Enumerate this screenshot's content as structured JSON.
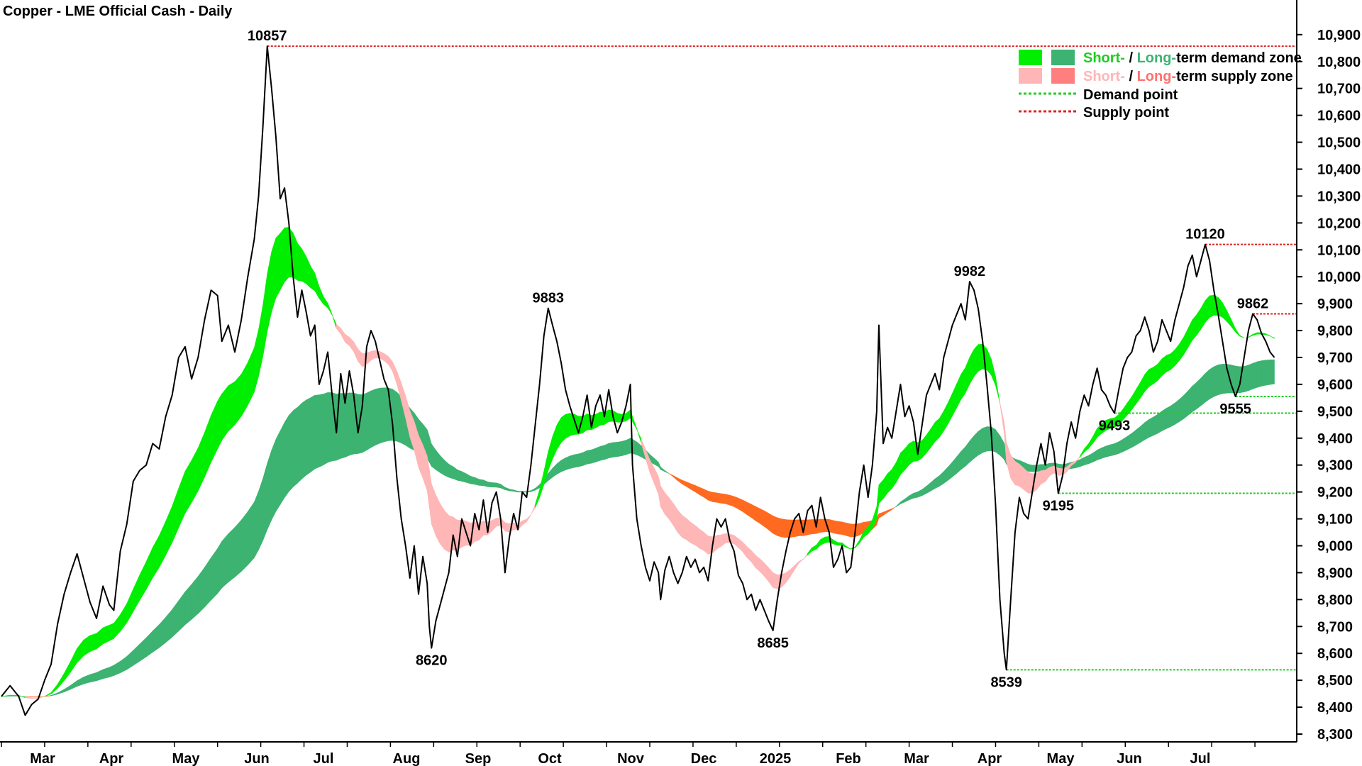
{
  "chart_data": {
    "type": "line",
    "title": "Copper - LME Official Cash - Daily",
    "x_labels": [
      "Mar",
      "Apr",
      "May",
      "Jun",
      "Jul",
      "Aug",
      "Sep",
      "Oct",
      "Nov",
      "Dec",
      "2025",
      "Feb",
      "Mar",
      "Apr",
      "May",
      "Jun",
      "Jul"
    ],
    "y_ticks": [
      "8,300",
      "8,400",
      "8,500",
      "8,600",
      "8,700",
      "8,800",
      "8,900",
      "9,000",
      "9,100",
      "9,200",
      "9,300",
      "9,400",
      "9,500",
      "9,600",
      "9,700",
      "9,800",
      "9,900",
      "10,000",
      "10,100",
      "10,200",
      "10,300",
      "10,400",
      "10,500",
      "10,600",
      "10,700",
      "10,800",
      "10,900"
    ],
    "ylim": [
      8260,
      10940
    ],
    "y_axis_position": "right",
    "grid": false,
    "legend_position": "top-right",
    "legend": {
      "row1": {
        "short": "Short-",
        "sep": " / ",
        "long": "Long-",
        "rest": "term demand zone"
      },
      "row2": {
        "short": "Short-",
        "sep": " / ",
        "long": "Long-",
        "rest": "term supply zone"
      },
      "row3": "Demand point",
      "row4": "Supply point"
    },
    "price_series": {
      "name": "",
      "points": [
        [
          0,
          8440
        ],
        [
          0.2,
          8480
        ],
        [
          0.4,
          8440
        ],
        [
          0.55,
          8370
        ],
        [
          0.7,
          8410
        ],
        [
          0.85,
          8430
        ],
        [
          1.0,
          8500
        ],
        [
          1.15,
          8560
        ],
        [
          1.3,
          8710
        ],
        [
          1.45,
          8820
        ],
        [
          1.6,
          8900
        ],
        [
          1.75,
          8970
        ],
        [
          1.9,
          8880
        ],
        [
          2.05,
          8790
        ],
        [
          2.2,
          8730
        ],
        [
          2.35,
          8850
        ],
        [
          2.5,
          8780
        ],
        [
          2.6,
          8760
        ],
        [
          2.75,
          8980
        ],
        [
          2.9,
          9080
        ],
        [
          3.05,
          9240
        ],
        [
          3.2,
          9280
        ],
        [
          3.35,
          9300
        ],
        [
          3.5,
          9380
        ],
        [
          3.65,
          9360
        ],
        [
          3.8,
          9480
        ],
        [
          3.95,
          9560
        ],
        [
          4.1,
          9700
        ],
        [
          4.25,
          9740
        ],
        [
          4.4,
          9620
        ],
        [
          4.55,
          9700
        ],
        [
          4.7,
          9840
        ],
        [
          4.85,
          9950
        ],
        [
          5.0,
          9930
        ],
        [
          5.1,
          9760
        ],
        [
          5.25,
          9820
        ],
        [
          5.4,
          9720
        ],
        [
          5.55,
          9840
        ],
        [
          5.7,
          10000
        ],
        [
          5.85,
          10140
        ],
        [
          5.95,
          10300
        ],
        [
          6.05,
          10560
        ],
        [
          6.15,
          10857
        ],
        [
          6.25,
          10700
        ],
        [
          6.35,
          10520
        ],
        [
          6.45,
          10290
        ],
        [
          6.55,
          10330
        ],
        [
          6.65,
          10200
        ],
        [
          6.75,
          10000
        ],
        [
          6.85,
          9850
        ],
        [
          6.95,
          9950
        ],
        [
          7.05,
          9870
        ],
        [
          7.15,
          9780
        ],
        [
          7.25,
          9820
        ],
        [
          7.35,
          9600
        ],
        [
          7.45,
          9650
        ],
        [
          7.55,
          9720
        ],
        [
          7.65,
          9560
        ],
        [
          7.75,
          9420
        ],
        [
          7.85,
          9640
        ],
        [
          7.95,
          9530
        ],
        [
          8.05,
          9650
        ],
        [
          8.15,
          9560
        ],
        [
          8.25,
          9420
        ],
        [
          8.35,
          9520
        ],
        [
          8.45,
          9740
        ],
        [
          8.55,
          9800
        ],
        [
          8.65,
          9760
        ],
        [
          8.75,
          9690
        ],
        [
          8.85,
          9620
        ],
        [
          8.95,
          9580
        ],
        [
          9.05,
          9450
        ],
        [
          9.15,
          9250
        ],
        [
          9.25,
          9100
        ],
        [
          9.35,
          9000
        ],
        [
          9.45,
          8880
        ],
        [
          9.55,
          9000
        ],
        [
          9.65,
          8820
        ],
        [
          9.75,
          8960
        ],
        [
          9.85,
          8860
        ],
        [
          9.9,
          8700
        ],
        [
          9.95,
          8620
        ],
        [
          10.05,
          8720
        ],
        [
          10.15,
          8780
        ],
        [
          10.25,
          8840
        ],
        [
          10.35,
          8900
        ],
        [
          10.45,
          9040
        ],
        [
          10.55,
          8960
        ],
        [
          10.65,
          9100
        ],
        [
          10.75,
          9050
        ],
        [
          10.85,
          9000
        ],
        [
          10.95,
          9120
        ],
        [
          11.05,
          9060
        ],
        [
          11.15,
          9170
        ],
        [
          11.25,
          9050
        ],
        [
          11.35,
          9160
        ],
        [
          11.45,
          9200
        ],
        [
          11.55,
          9100
        ],
        [
          11.65,
          8900
        ],
        [
          11.75,
          9030
        ],
        [
          11.85,
          9120
        ],
        [
          11.95,
          9060
        ],
        [
          12.05,
          9200
        ],
        [
          12.15,
          9180
        ],
        [
          12.25,
          9300
        ],
        [
          12.35,
          9450
        ],
        [
          12.45,
          9600
        ],
        [
          12.55,
          9780
        ],
        [
          12.65,
          9883
        ],
        [
          12.75,
          9820
        ],
        [
          12.85,
          9760
        ],
        [
          12.95,
          9680
        ],
        [
          13.05,
          9580
        ],
        [
          13.15,
          9520
        ],
        [
          13.25,
          9470
        ],
        [
          13.35,
          9420
        ],
        [
          13.45,
          9480
        ],
        [
          13.55,
          9560
        ],
        [
          13.65,
          9440
        ],
        [
          13.75,
          9520
        ],
        [
          13.85,
          9560
        ],
        [
          13.95,
          9480
        ],
        [
          14.05,
          9580
        ],
        [
          14.15,
          9480
        ],
        [
          14.25,
          9420
        ],
        [
          14.35,
          9460
        ],
        [
          14.45,
          9520
        ],
        [
          14.55,
          9600
        ],
        [
          14.6,
          9300
        ],
        [
          14.7,
          9100
        ],
        [
          14.8,
          9000
        ],
        [
          14.9,
          8920
        ],
        [
          15.0,
          8870
        ],
        [
          15.1,
          8940
        ],
        [
          15.2,
          8900
        ],
        [
          15.25,
          8800
        ],
        [
          15.35,
          8910
        ],
        [
          15.45,
          8960
        ],
        [
          15.55,
          8900
        ],
        [
          15.65,
          8860
        ],
        [
          15.75,
          8900
        ],
        [
          15.85,
          8960
        ],
        [
          15.95,
          8920
        ],
        [
          16.05,
          8950
        ],
        [
          16.15,
          8900
        ],
        [
          16.25,
          8920
        ],
        [
          16.35,
          8870
        ],
        [
          16.45,
          9000
        ],
        [
          16.55,
          9100
        ],
        [
          16.65,
          9070
        ],
        [
          16.75,
          9100
        ],
        [
          16.85,
          9020
        ],
        [
          16.95,
          8980
        ],
        [
          17.05,
          8890
        ],
        [
          17.15,
          8860
        ],
        [
          17.25,
          8800
        ],
        [
          17.35,
          8820
        ],
        [
          17.45,
          8760
        ],
        [
          17.55,
          8800
        ],
        [
          17.65,
          8760
        ],
        [
          17.75,
          8720
        ],
        [
          17.85,
          8685
        ],
        [
          17.95,
          8800
        ],
        [
          18.05,
          8900
        ],
        [
          18.15,
          8980
        ],
        [
          18.25,
          9050
        ],
        [
          18.35,
          9100
        ],
        [
          18.45,
          9120
        ],
        [
          18.55,
          9050
        ],
        [
          18.65,
          9130
        ],
        [
          18.75,
          9150
        ],
        [
          18.85,
          9070
        ],
        [
          18.95,
          9180
        ],
        [
          19.05,
          9100
        ],
        [
          19.15,
          9050
        ],
        [
          19.25,
          8920
        ],
        [
          19.35,
          8950
        ],
        [
          19.45,
          9000
        ],
        [
          19.55,
          8900
        ],
        [
          19.65,
          8920
        ],
        [
          19.75,
          9050
        ],
        [
          19.85,
          9200
        ],
        [
          19.95,
          9300
        ],
        [
          20.05,
          9180
        ],
        [
          20.15,
          9300
        ],
        [
          20.25,
          9500
        ],
        [
          20.3,
          9820
        ],
        [
          20.4,
          9380
        ],
        [
          20.5,
          9440
        ],
        [
          20.6,
          9400
        ],
        [
          20.7,
          9500
        ],
        [
          20.8,
          9600
        ],
        [
          20.9,
          9480
        ],
        [
          21.0,
          9520
        ],
        [
          21.1,
          9460
        ],
        [
          21.2,
          9340
        ],
        [
          21.3,
          9450
        ],
        [
          21.4,
          9560
        ],
        [
          21.5,
          9600
        ],
        [
          21.6,
          9640
        ],
        [
          21.7,
          9580
        ],
        [
          21.8,
          9700
        ],
        [
          21.9,
          9760
        ],
        [
          22.0,
          9820
        ],
        [
          22.1,
          9860
        ],
        [
          22.2,
          9900
        ],
        [
          22.3,
          9840
        ],
        [
          22.4,
          9982
        ],
        [
          22.5,
          9950
        ],
        [
          22.6,
          9880
        ],
        [
          22.7,
          9760
        ],
        [
          22.8,
          9600
        ],
        [
          22.9,
          9420
        ],
        [
          23.0,
          9150
        ],
        [
          23.1,
          8800
        ],
        [
          23.2,
          8600
        ],
        [
          23.25,
          8539
        ],
        [
          23.35,
          8800
        ],
        [
          23.45,
          9050
        ],
        [
          23.55,
          9180
        ],
        [
          23.65,
          9120
        ],
        [
          23.75,
          9100
        ],
        [
          23.85,
          9200
        ],
        [
          23.95,
          9300
        ],
        [
          24.05,
          9380
        ],
        [
          24.15,
          9300
        ],
        [
          24.25,
          9420
        ],
        [
          24.35,
          9350
        ],
        [
          24.45,
          9195
        ],
        [
          24.55,
          9260
        ],
        [
          24.65,
          9380
        ],
        [
          24.75,
          9460
        ],
        [
          24.85,
          9400
        ],
        [
          24.95,
          9500
        ],
        [
          25.05,
          9560
        ],
        [
          25.15,
          9520
        ],
        [
          25.25,
          9600
        ],
        [
          25.35,
          9660
        ],
        [
          25.45,
          9580
        ],
        [
          25.55,
          9560
        ],
        [
          25.65,
          9520
        ],
        [
          25.75,
          9493
        ],
        [
          25.85,
          9580
        ],
        [
          25.95,
          9660
        ],
        [
          26.05,
          9700
        ],
        [
          26.15,
          9720
        ],
        [
          26.25,
          9780
        ],
        [
          26.35,
          9800
        ],
        [
          26.45,
          9850
        ],
        [
          26.55,
          9800
        ],
        [
          26.65,
          9720
        ],
        [
          26.75,
          9760
        ],
        [
          26.85,
          9840
        ],
        [
          26.95,
          9800
        ],
        [
          27.05,
          9760
        ],
        [
          27.15,
          9840
        ],
        [
          27.25,
          9900
        ],
        [
          27.35,
          9960
        ],
        [
          27.45,
          10040
        ],
        [
          27.55,
          10080
        ],
        [
          27.65,
          10000
        ],
        [
          27.75,
          10060
        ],
        [
          27.85,
          10120
        ],
        [
          27.95,
          10060
        ],
        [
          28.05,
          9950
        ],
        [
          28.15,
          9860
        ],
        [
          28.25,
          9760
        ],
        [
          28.35,
          9660
        ],
        [
          28.45,
          9600
        ],
        [
          28.55,
          9555
        ],
        [
          28.65,
          9600
        ],
        [
          28.75,
          9700
        ],
        [
          28.85,
          9800
        ],
        [
          28.95,
          9862
        ],
        [
          29.05,
          9840
        ],
        [
          29.15,
          9790
        ],
        [
          29.25,
          9760
        ],
        [
          29.35,
          9720
        ],
        [
          29.45,
          9700
        ]
      ]
    },
    "annotations": [
      {
        "label": "10857",
        "x": 6.15,
        "value": 10857,
        "kind": "peak"
      },
      {
        "label": "8620",
        "x": 9.95,
        "value": 8620,
        "kind": "trough"
      },
      {
        "label": "9883",
        "x": 12.65,
        "value": 9883,
        "kind": "peak"
      },
      {
        "label": "8685",
        "x": 17.85,
        "value": 8685,
        "kind": "trough"
      },
      {
        "label": "9982",
        "x": 22.4,
        "value": 9982,
        "kind": "peak"
      },
      {
        "label": "8539",
        "x": 23.25,
        "value": 8539,
        "kind": "trough"
      },
      {
        "label": "9195",
        "x": 24.45,
        "value": 9195,
        "kind": "trough"
      },
      {
        "label": "9493",
        "x": 25.75,
        "value": 9493,
        "kind": "trough"
      },
      {
        "label": "10120",
        "x": 27.85,
        "value": 10120,
        "kind": "peak"
      },
      {
        "label": "9862",
        "x": 28.95,
        "value": 9862,
        "kind": "peak"
      },
      {
        "label": "9555",
        "x": 28.55,
        "value": 9555,
        "kind": "trough"
      }
    ],
    "supply_points": [
      10857,
      10120,
      9862
    ],
    "demand_points": [
      9555,
      9493,
      9195,
      8539
    ],
    "colors": {
      "price_line": "#000000",
      "short_demand": "#00ee00",
      "long_demand": "#3cb371",
      "short_supply": "#ffb6b6",
      "long_supply": "#ff6a20",
      "demand_point": "#22cc22",
      "supply_point": "#dd2222",
      "legend_short_demand_text": "#22cc22",
      "legend_long_demand_text": "#3cb371",
      "legend_short_supply_text": "#ffb6b6",
      "legend_long_supply_text": "#ff7070",
      "legend_long_supply_swatch": "#ff7f7f"
    }
  }
}
